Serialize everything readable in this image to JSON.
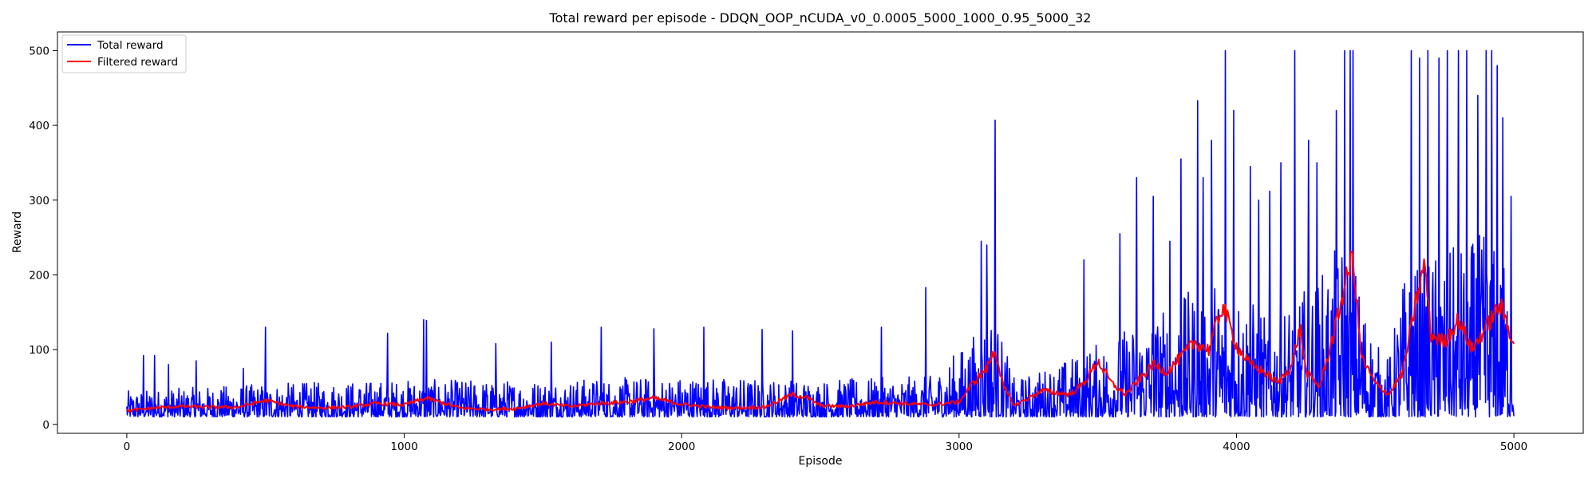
{
  "chart_data": {
    "type": "line",
    "title": "Total reward per episode - DDQN_OOP_nCUDA_v0_0.0005_5000_1000_0.95_5000_32",
    "xlabel": "Episode",
    "ylabel": "Reward",
    "xlim": [
      -250,
      5250
    ],
    "ylim": [
      -12,
      525
    ],
    "xticks": [
      0,
      1000,
      2000,
      3000,
      4000,
      5000
    ],
    "yticks": [
      0,
      100,
      200,
      300,
      400,
      500
    ],
    "legend_position": "top-left",
    "grid": false,
    "series": [
      {
        "name": "Total reward",
        "color": "#0000ff",
        "profile": {
          "x": [
            0,
            500,
            1000,
            1500,
            2000,
            2500,
            2900,
            3050,
            3120,
            3200,
            3400,
            3600,
            3800,
            3900,
            4000,
            4100,
            4200,
            4300,
            4400,
            4500,
            4550,
            4600,
            4700,
            4800,
            4900,
            5000
          ],
          "y_min": [
            10,
            10,
            10,
            10,
            10,
            10,
            10,
            10,
            10,
            10,
            10,
            10,
            10,
            10,
            10,
            10,
            10,
            10,
            10,
            10,
            10,
            10,
            10,
            10,
            10,
            10
          ],
          "y_typical_max": [
            45,
            55,
            60,
            60,
            65,
            60,
            65,
            120,
            160,
            60,
            90,
            130,
            170,
            200,
            190,
            150,
            170,
            200,
            260,
            110,
            90,
            200,
            230,
            240,
            260,
            200
          ]
        },
        "peaks": {
          "x": [
            60,
            100,
            150,
            250,
            420,
            500,
            940,
            1070,
            1080,
            1330,
            1530,
            1710,
            1900,
            2080,
            2290,
            2400,
            2720,
            2880,
            3080,
            3100,
            3130,
            3450,
            3580,
            3640,
            3700,
            3760,
            3800,
            3860,
            3880,
            3910,
            3960,
            3990,
            4050,
            4080,
            4120,
            4160,
            4210,
            4260,
            4290,
            4360,
            4390,
            4410,
            4420,
            4630,
            4660,
            4690,
            4730,
            4760,
            4800,
            4830,
            4870,
            4900,
            4920,
            4940,
            4960,
            4990
          ],
          "y": [
            92,
            92,
            80,
            85,
            75,
            130,
            122,
            140,
            139,
            108,
            110,
            130,
            128,
            130,
            127,
            125,
            130,
            183,
            245,
            240,
            407,
            220,
            255,
            330,
            305,
            245,
            355,
            433,
            330,
            380,
            500,
            420,
            345,
            300,
            312,
            350,
            500,
            380,
            350,
            420,
            500,
            500,
            500,
            500,
            490,
            500,
            490,
            500,
            500,
            500,
            440,
            500,
            500,
            480,
            410,
            305
          ]
        }
      },
      {
        "name": "Filtered reward",
        "color": "#ff0000",
        "x": [
          0,
          100,
          200,
          300,
          400,
          500,
          600,
          700,
          800,
          900,
          1000,
          1080,
          1200,
          1300,
          1400,
          1500,
          1600,
          1700,
          1800,
          1900,
          2000,
          2100,
          2200,
          2300,
          2400,
          2450,
          2500,
          2600,
          2700,
          2800,
          2900,
          3000,
          3050,
          3100,
          3130,
          3160,
          3200,
          3300,
          3400,
          3450,
          3500,
          3550,
          3600,
          3650,
          3700,
          3750,
          3800,
          3850,
          3900,
          3950,
          4000,
          4050,
          4100,
          4150,
          4200,
          4230,
          4250,
          4300,
          4350,
          4400,
          4420,
          4450,
          4500,
          4550,
          4600,
          4650,
          4680,
          4700,
          4750,
          4800,
          4850,
          4900,
          4950,
          5000
        ],
        "y": [
          18,
          22,
          24,
          23,
          23,
          32,
          24,
          22,
          23,
          28,
          26,
          35,
          22,
          20,
          21,
          28,
          24,
          28,
          30,
          35,
          27,
          23,
          22,
          23,
          40,
          36,
          25,
          24,
          30,
          28,
          26,
          30,
          55,
          75,
          100,
          50,
          25,
          45,
          40,
          55,
          85,
          55,
          40,
          60,
          80,
          70,
          90,
          110,
          100,
          160,
          105,
          80,
          70,
          55,
          80,
          130,
          70,
          50,
          120,
          200,
          225,
          90,
          55,
          40,
          70,
          170,
          215,
          120,
          110,
          140,
          100,
          130,
          160,
          110
        ]
      }
    ]
  }
}
